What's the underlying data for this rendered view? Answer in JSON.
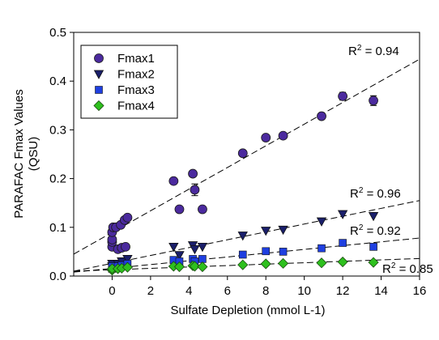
{
  "chart_data": {
    "type": "scatter",
    "title": "",
    "xlabel": "Sulfate Depletion (mmol L-1)",
    "ylabel_line1": "PARAFAC Fmax Values",
    "ylabel_line2": "(QSU)",
    "xlim": [
      -2,
      16
    ],
    "ylim": [
      0,
      0.5
    ],
    "xticks": [
      0,
      2,
      4,
      6,
      8,
      10,
      12,
      14,
      16
    ],
    "yticks": [
      0.0,
      0.1,
      0.2,
      0.3,
      0.4,
      0.5
    ],
    "xtick_labels": [
      "0",
      "2",
      "4",
      "6",
      "8",
      "10",
      "12",
      "14",
      "16"
    ],
    "ytick_labels": [
      "0.0",
      "0.1",
      "0.2",
      "0.3",
      "0.4",
      "0.5"
    ],
    "grid": false,
    "legend_position": "top-left",
    "series": [
      {
        "name": "Fmax1",
        "marker": "circle",
        "color": "#4B2A9E",
        "points": [
          {
            "x": 0.0,
            "y": 0.06
          },
          {
            "x": 0.0,
            "y": 0.07
          },
          {
            "x": 0.0,
            "y": 0.075
          },
          {
            "x": 0.0,
            "y": 0.09
          },
          {
            "x": 0.05,
            "y": 0.1
          },
          {
            "x": 0.3,
            "y": 0.055
          },
          {
            "x": 0.5,
            "y": 0.058
          },
          {
            "x": 0.7,
            "y": 0.06
          },
          {
            "x": 0.2,
            "y": 0.1
          },
          {
            "x": 0.45,
            "y": 0.105
          },
          {
            "x": 0.65,
            "y": 0.115
          },
          {
            "x": 0.8,
            "y": 0.12
          },
          {
            "x": 3.2,
            "y": 0.195
          },
          {
            "x": 3.5,
            "y": 0.137
          },
          {
            "x": 4.2,
            "y": 0.21
          },
          {
            "x": 4.3,
            "y": 0.177
          },
          {
            "x": 4.7,
            "y": 0.137
          },
          {
            "x": 6.8,
            "y": 0.252
          },
          {
            "x": 8.0,
            "y": 0.284
          },
          {
            "x": 8.9,
            "y": 0.288
          },
          {
            "x": 10.9,
            "y": 0.328
          },
          {
            "x": 12.0,
            "y": 0.369
          },
          {
            "x": 13.6,
            "y": 0.36
          }
        ],
        "error_bars": [
          {
            "x": 4.3,
            "y": 0.177,
            "err": 0.012
          },
          {
            "x": 12.0,
            "y": 0.369,
            "err": 0.008
          },
          {
            "x": 13.6,
            "y": 0.36,
            "err": 0.01
          }
        ],
        "trendline": {
          "x0": -2,
          "y0": 0.045,
          "x1": 16,
          "y1": 0.445
        },
        "r2_label": "0.94"
      },
      {
        "name": "Fmax2",
        "marker": "triangle-down",
        "color": "#1A1F6B",
        "points": [
          {
            "x": 0.0,
            "y": 0.02
          },
          {
            "x": 0.0,
            "y": 0.025
          },
          {
            "x": 0.3,
            "y": 0.025
          },
          {
            "x": 0.5,
            "y": 0.03
          },
          {
            "x": 0.8,
            "y": 0.035
          },
          {
            "x": 3.2,
            "y": 0.06
          },
          {
            "x": 3.5,
            "y": 0.043
          },
          {
            "x": 4.2,
            "y": 0.063
          },
          {
            "x": 4.3,
            "y": 0.055
          },
          {
            "x": 4.7,
            "y": 0.06
          },
          {
            "x": 6.8,
            "y": 0.083
          },
          {
            "x": 8.0,
            "y": 0.093
          },
          {
            "x": 8.9,
            "y": 0.095
          },
          {
            "x": 10.9,
            "y": 0.112
          },
          {
            "x": 12.0,
            "y": 0.127
          },
          {
            "x": 13.6,
            "y": 0.123
          }
        ],
        "trendline": {
          "x0": -2,
          "y0": 0.01,
          "x1": 16,
          "y1": 0.155
        },
        "r2_label": "0.96"
      },
      {
        "name": "Fmax3",
        "marker": "square",
        "color": "#1F3FE0",
        "points": [
          {
            "x": 0.0,
            "y": 0.015
          },
          {
            "x": 0.0,
            "y": 0.02
          },
          {
            "x": 0.3,
            "y": 0.02
          },
          {
            "x": 0.5,
            "y": 0.022
          },
          {
            "x": 0.8,
            "y": 0.025
          },
          {
            "x": 3.2,
            "y": 0.033
          },
          {
            "x": 3.5,
            "y": 0.03
          },
          {
            "x": 4.2,
            "y": 0.035
          },
          {
            "x": 4.3,
            "y": 0.03
          },
          {
            "x": 4.7,
            "y": 0.035
          },
          {
            "x": 6.8,
            "y": 0.044
          },
          {
            "x": 8.0,
            "y": 0.051
          },
          {
            "x": 8.9,
            "y": 0.05
          },
          {
            "x": 10.9,
            "y": 0.057
          },
          {
            "x": 12.0,
            "y": 0.068
          },
          {
            "x": 13.6,
            "y": 0.06
          }
        ],
        "trendline": {
          "x0": -2,
          "y0": 0.008,
          "x1": 16,
          "y1": 0.078
        },
        "r2_label": "0.92"
      },
      {
        "name": "Fmax4",
        "marker": "diamond",
        "color": "#2EC01E",
        "points": [
          {
            "x": 0.0,
            "y": 0.012
          },
          {
            "x": 0.0,
            "y": 0.015
          },
          {
            "x": 0.3,
            "y": 0.015
          },
          {
            "x": 0.5,
            "y": 0.016
          },
          {
            "x": 0.8,
            "y": 0.018
          },
          {
            "x": 3.2,
            "y": 0.02
          },
          {
            "x": 3.5,
            "y": 0.019
          },
          {
            "x": 4.2,
            "y": 0.021
          },
          {
            "x": 4.3,
            "y": 0.02
          },
          {
            "x": 4.7,
            "y": 0.019
          },
          {
            "x": 6.8,
            "y": 0.023
          },
          {
            "x": 8.0,
            "y": 0.025
          },
          {
            "x": 8.9,
            "y": 0.026
          },
          {
            "x": 10.9,
            "y": 0.027
          },
          {
            "x": 12.0,
            "y": 0.029
          },
          {
            "x": 13.6,
            "y": 0.028
          }
        ],
        "trendline": {
          "x0": -2,
          "y0": 0.01,
          "x1": 16,
          "y1": 0.036
        },
        "r2_label": "0.85"
      }
    ],
    "r2_prefix": "R",
    "r2_superscript": "2",
    "r2_equals": " = "
  }
}
